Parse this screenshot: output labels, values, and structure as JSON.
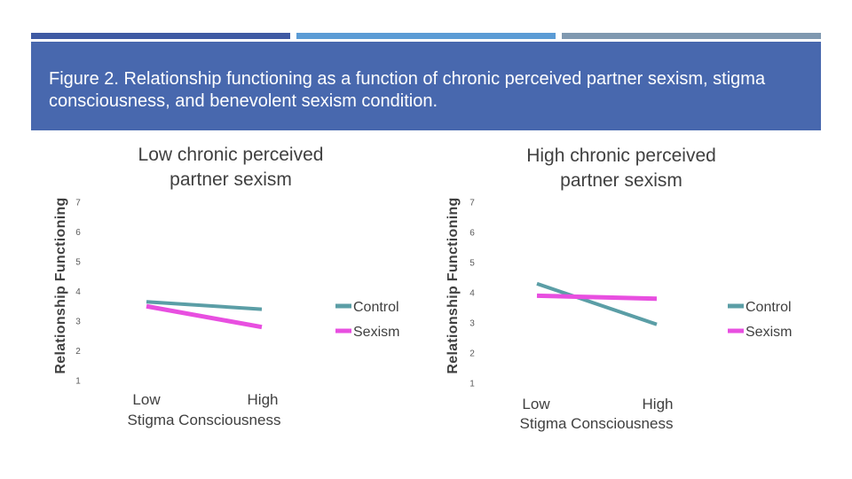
{
  "slide": {
    "title": "Figure 2. Relationship functioning as a function of chronic perceived partner sexism, stigma consciousness, and benevolent sexism condition."
  },
  "colors": {
    "banner": "#4868ae",
    "control": "#5b9ea6",
    "sexism": "#e84fe0"
  },
  "chart_data": [
    {
      "type": "line",
      "title_lines": [
        "Low chronic perceived",
        "partner sexism"
      ],
      "categories": [
        "Low",
        "High"
      ],
      "xlabel": "Stigma Consciousness",
      "ylabel": "Relationship Functioning",
      "ylim": [
        1,
        7
      ],
      "yticks": [
        1,
        2,
        3,
        4,
        5,
        6,
        7
      ],
      "grid": false,
      "legend": "right",
      "series": [
        {
          "name": "Control",
          "values": [
            3.65,
            3.4
          ]
        },
        {
          "name": "Sexism",
          "values": [
            3.5,
            2.8
          ]
        }
      ]
    },
    {
      "type": "line",
      "title_lines": [
        "High chronic perceived",
        "partner sexism"
      ],
      "categories": [
        "Low",
        "High"
      ],
      "xlabel": "Stigma Consciousness",
      "ylabel": "Relationship Functioning",
      "ylim": [
        1,
        7
      ],
      "yticks": [
        1,
        2,
        3,
        4,
        5,
        6,
        7
      ],
      "grid": false,
      "legend": "right",
      "series": [
        {
          "name": "Control",
          "values": [
            4.3,
            2.95
          ]
        },
        {
          "name": "Sexism",
          "values": [
            3.9,
            3.8
          ]
        }
      ]
    }
  ]
}
